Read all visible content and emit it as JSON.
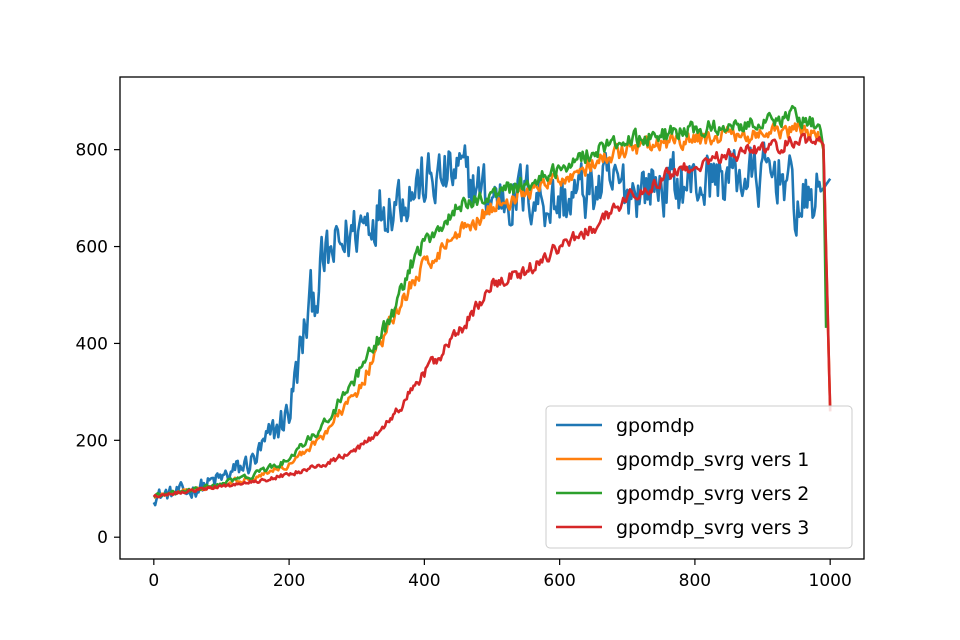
{
  "chart_data": {
    "type": "line",
    "title": "",
    "xlabel": "",
    "ylabel": "",
    "xlim": [
      -50,
      1050
    ],
    "ylim": [
      -45,
      950
    ],
    "xticks": [
      0,
      200,
      400,
      600,
      800,
      1000
    ],
    "yticks": [
      0,
      200,
      400,
      600,
      800
    ],
    "grid": false,
    "legend_position": "lower-right",
    "series": [
      {
        "name": "gpomdp",
        "color": "#1f77b4",
        "noise": 55,
        "x": [
          0,
          50,
          100,
          150,
          200,
          230,
          250,
          300,
          350,
          400,
          450,
          500,
          550,
          600,
          650,
          700,
          750,
          800,
          850,
          900,
          930,
          950,
          970,
          990,
          1000
        ],
        "y": [
          85,
          95,
          120,
          160,
          260,
          470,
          560,
          640,
          700,
          730,
          750,
          700,
          710,
          690,
          720,
          720,
          730,
          730,
          750,
          740,
          760,
          680,
          690,
          720,
          740
        ]
      },
      {
        "name": "gpomdp_svrg vers 1",
        "color": "#ff7f0e",
        "noise": 15,
        "x": [
          0,
          50,
          100,
          150,
          200,
          250,
          300,
          350,
          380,
          400,
          450,
          500,
          550,
          600,
          650,
          700,
          750,
          800,
          850,
          900,
          950,
          985,
          990,
          1000
        ],
        "y": [
          85,
          95,
          110,
          125,
          150,
          210,
          300,
          440,
          520,
          560,
          630,
          680,
          710,
          740,
          770,
          800,
          810,
          820,
          830,
          830,
          840,
          830,
          800,
          260
        ]
      },
      {
        "name": "gpomdp_svrg vers 2",
        "color": "#2ca02c",
        "noise": 15,
        "x": [
          0,
          50,
          100,
          150,
          200,
          250,
          300,
          350,
          380,
          400,
          450,
          500,
          550,
          600,
          650,
          700,
          750,
          800,
          850,
          900,
          950,
          985,
          990,
          995
        ],
        "y": [
          85,
          95,
          110,
          130,
          160,
          230,
          330,
          450,
          560,
          610,
          680,
          710,
          730,
          760,
          800,
          820,
          830,
          840,
          850,
          860,
          870,
          850,
          800,
          340
        ]
      },
      {
        "name": "gpomdp_svrg vers 3",
        "color": "#d62728",
        "noise": 12,
        "x": [
          0,
          50,
          100,
          150,
          200,
          250,
          300,
          350,
          400,
          450,
          500,
          550,
          600,
          650,
          700,
          750,
          800,
          850,
          900,
          950,
          985,
          990,
          1000
        ],
        "y": [
          85,
          95,
          105,
          115,
          130,
          150,
          180,
          240,
          340,
          420,
          520,
          550,
          600,
          640,
          700,
          740,
          770,
          790,
          800,
          820,
          820,
          810,
          260
        ]
      }
    ]
  }
}
